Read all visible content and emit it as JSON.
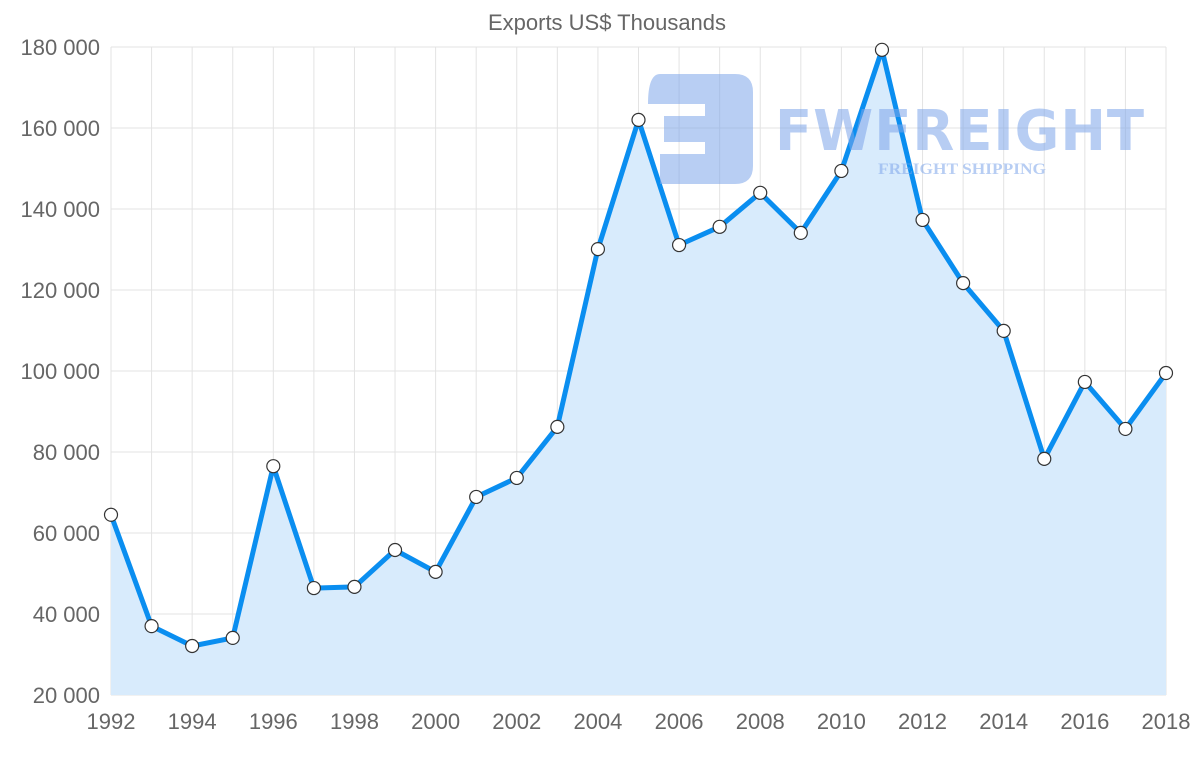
{
  "chart_data": {
    "type": "area",
    "title": "Exports US$ Thousands",
    "xlabel": "",
    "ylabel": "",
    "ylim": [
      20000,
      180000
    ],
    "y_ticks": [
      20000,
      40000,
      60000,
      80000,
      100000,
      120000,
      140000,
      160000,
      180000
    ],
    "y_tick_labels": [
      "20 000",
      "40 000",
      "60 000",
      "80 000",
      "100 000",
      "120 000",
      "140 000",
      "160 000",
      "180 000"
    ],
    "x_tick_labels": [
      "1992",
      "1994",
      "1996",
      "1998",
      "2000",
      "2002",
      "2004",
      "2006",
      "2008",
      "2010",
      "2012",
      "2014",
      "2016",
      "2018"
    ],
    "grid": true,
    "legend": "none",
    "x": [
      1992,
      1993,
      1994,
      1995,
      1996,
      1997,
      1998,
      1999,
      2000,
      2001,
      2002,
      2003,
      2004,
      2005,
      2006,
      2007,
      2008,
      2009,
      2010,
      2011,
      2012,
      2013,
      2014,
      2015,
      2016,
      2017,
      2018
    ],
    "series": [
      {
        "name": "Exports US$ Thousands",
        "values": [
          64500,
          37000,
          32100,
          34100,
          76500,
          46400,
          46700,
          55800,
          50400,
          68900,
          73600,
          86200,
          130100,
          162000,
          131100,
          135600,
          144000,
          134100,
          149400,
          179300,
          137300,
          121700,
          109900,
          78300,
          97300,
          85700,
          99500
        ]
      }
    ],
    "colors": {
      "line": "#0a8ef0",
      "fill": "#d8ebfc",
      "marker_fill": "#ffffff",
      "marker_stroke": "#333333"
    }
  },
  "watermark": {
    "brand": "FWFREIGHT",
    "tagline": "FREIGHT SHIPPING",
    "color": "#7ea6ea"
  }
}
